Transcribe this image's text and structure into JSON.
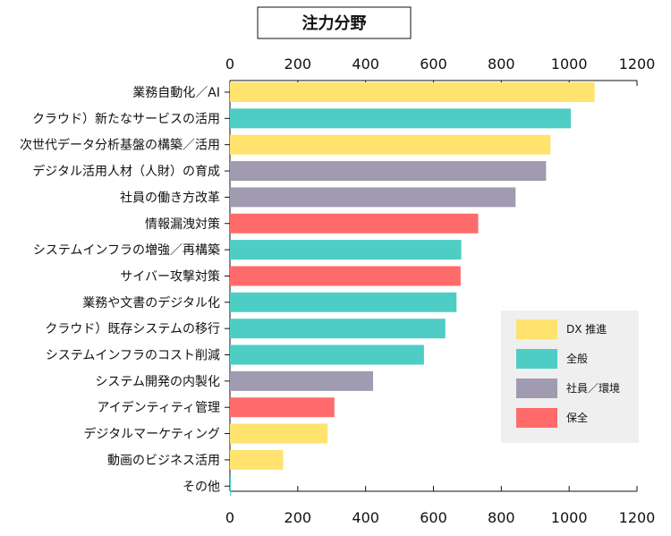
{
  "chart_data": {
    "type": "bar",
    "orientation": "horizontal",
    "title": "注力分野",
    "xlim": [
      0,
      1200
    ],
    "ticks": [
      0,
      200,
      400,
      600,
      800,
      1000,
      1200
    ],
    "grid": false,
    "legend_position": "right",
    "categories": [
      "業務自動化／AI",
      "クラウド）新たなサービスの活用",
      "次世代データ分析基盤の構築／活用",
      "デジタル活用人材（人財）の育成",
      "社員の働き方改革",
      "情報漏洩対策",
      "システムインフラの増強／再構築",
      "サイバー攻撃対策",
      "業務や文書のデジタル化",
      "クラウド）既存システムの移行",
      "システムインフラのコスト削減",
      "システム開発の内製化",
      "アイデンティティ管理",
      "デジタルマーケティング",
      "動画のビジネス活用",
      "その他"
    ],
    "values": [
      1075,
      1005,
      945,
      932,
      842,
      732,
      682,
      680,
      668,
      635,
      572,
      422,
      308,
      288,
      157,
      3
    ],
    "groups": [
      "DX",
      "all",
      "DX",
      "staff",
      "staff",
      "security",
      "all",
      "security",
      "all",
      "all",
      "all",
      "staff",
      "security",
      "DX",
      "DX",
      "all"
    ],
    "legend": [
      {
        "key": "DX",
        "label": "DX 推進",
        "color": "#FFE36E"
      },
      {
        "key": "all",
        "label": "全般",
        "color": "#4ECDC4"
      },
      {
        "key": "staff",
        "label": "社員／環境",
        "color": "#A09BB0"
      },
      {
        "key": "security",
        "label": "保全",
        "color": "#FF6B6B"
      }
    ],
    "colors": {
      "axis": "#111111",
      "legend_bg": "#EFEFEF"
    }
  }
}
